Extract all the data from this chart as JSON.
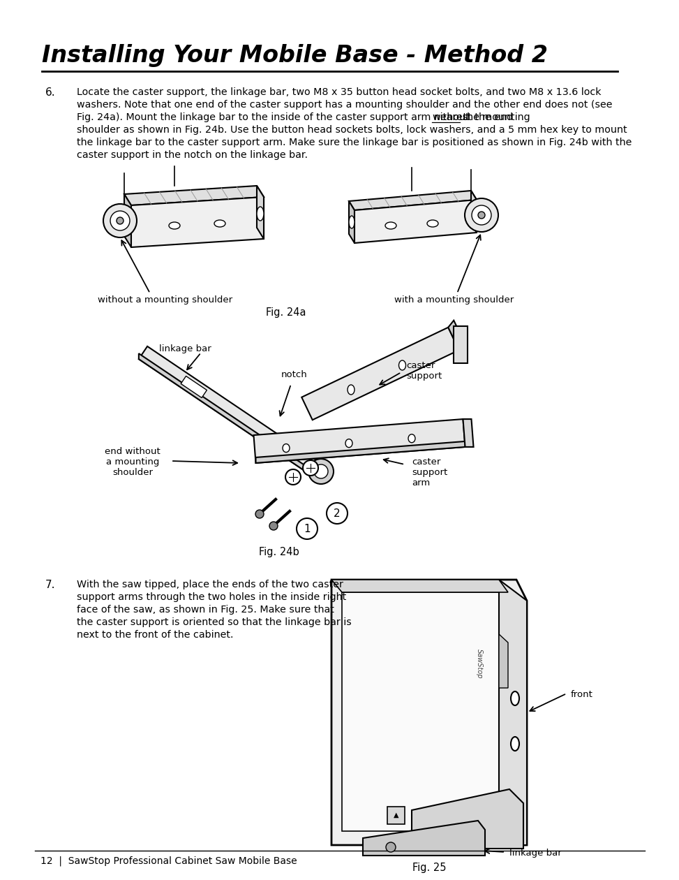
{
  "title": "Installing Your Mobile Base - Method 2",
  "background_color": "#ffffff",
  "text_color": "#000000",
  "footer_text": "12  |  SawStop Professional Cabinet Saw Mobile Base",
  "step6_number": "6.",
  "step6_lines": [
    "Locate the caster support, the linkage bar, two M8 x 35 button head socket bolts, and two M8 x 13.6 lock",
    "washers. Note that one end of the caster support has a mounting shoulder and the other end does not (see",
    "Fig. 24a). Mount the linkage bar to the inside of the caster support arm nearest the end without the mounting",
    "shoulder as shown in Fig. 24b. Use the button head sockets bolts, lock washers, and a 5 mm hex key to mount",
    "the linkage bar to the caster support arm. Make sure the linkage bar is positioned as shown in Fig. 24b with the",
    "caster support in the notch on the linkage bar."
  ],
  "step6_underline_line_idx": 2,
  "step6_underline_before": "Fig. 24a). Mount the linkage bar to the inside of the caster support arm nearest the end ",
  "step6_underline_word": "without",
  "step6_underline_after": " the mounting",
  "step7_number": "7.",
  "step7_lines": [
    "With the saw tipped, place the ends of the two caster",
    "support arms through the two holes in the inside right",
    "face of the saw, as shown in Fig. 25. Make sure that",
    "the caster support is oriented so that the linkage bar is",
    "next to the front of the cabinet."
  ],
  "fig24a_label": "Fig. 24a",
  "fig24b_label": "Fig. 24b",
  "fig25_label": "Fig. 25",
  "label_without": "without a mounting shoulder",
  "label_with": "with a mounting shoulder",
  "label_linkage_bar": "linkage bar",
  "label_notch": "notch",
  "label_caster_support": "caster\nsupport",
  "label_end_without": "end without\na mounting\nshoulder",
  "label_caster_arm": "caster\nsupport\narm",
  "label_front": "front",
  "label_linkage_bar2": "linkage bar"
}
